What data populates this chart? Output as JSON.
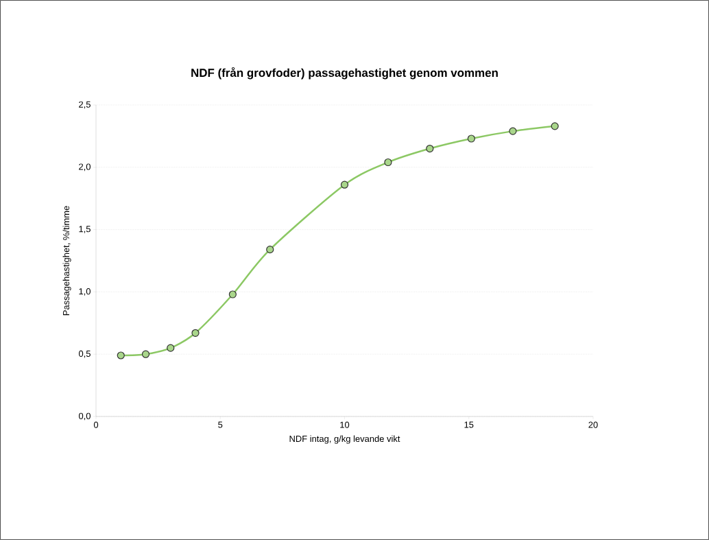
{
  "chart_data": {
    "type": "line",
    "title": "NDF (från grovfoder) passagehastighet genom vommen",
    "xlabel": "NDF intag, g/kg levande vikt",
    "ylabel": "Passagehastighet, %/timme",
    "x": [
      1.0,
      2.0,
      3.0,
      4.0,
      5.5,
      7.0,
      10.0,
      11.75,
      13.43,
      15.1,
      16.77,
      18.46
    ],
    "values": [
      0.49,
      0.5,
      0.55,
      0.67,
      0.98,
      1.34,
      1.86,
      2.04,
      2.15,
      2.23,
      2.29,
      2.33
    ],
    "color": "#8cc864",
    "marker": "circle",
    "grid": "y",
    "xlim": [
      0,
      20
    ],
    "xticks": [
      0,
      5,
      10,
      15,
      20
    ],
    "ylim": [
      0,
      2.5
    ],
    "yticks": [
      {
        "value": 0,
        "label": "0,0"
      },
      {
        "value": 0.5,
        "label": "0,5"
      },
      {
        "value": 1.0,
        "label": "1,0"
      },
      {
        "value": 1.5,
        "label": "1,5"
      },
      {
        "value": 2.0,
        "label": "2,0"
      },
      {
        "value": 2.5,
        "label": "2,5"
      }
    ]
  }
}
